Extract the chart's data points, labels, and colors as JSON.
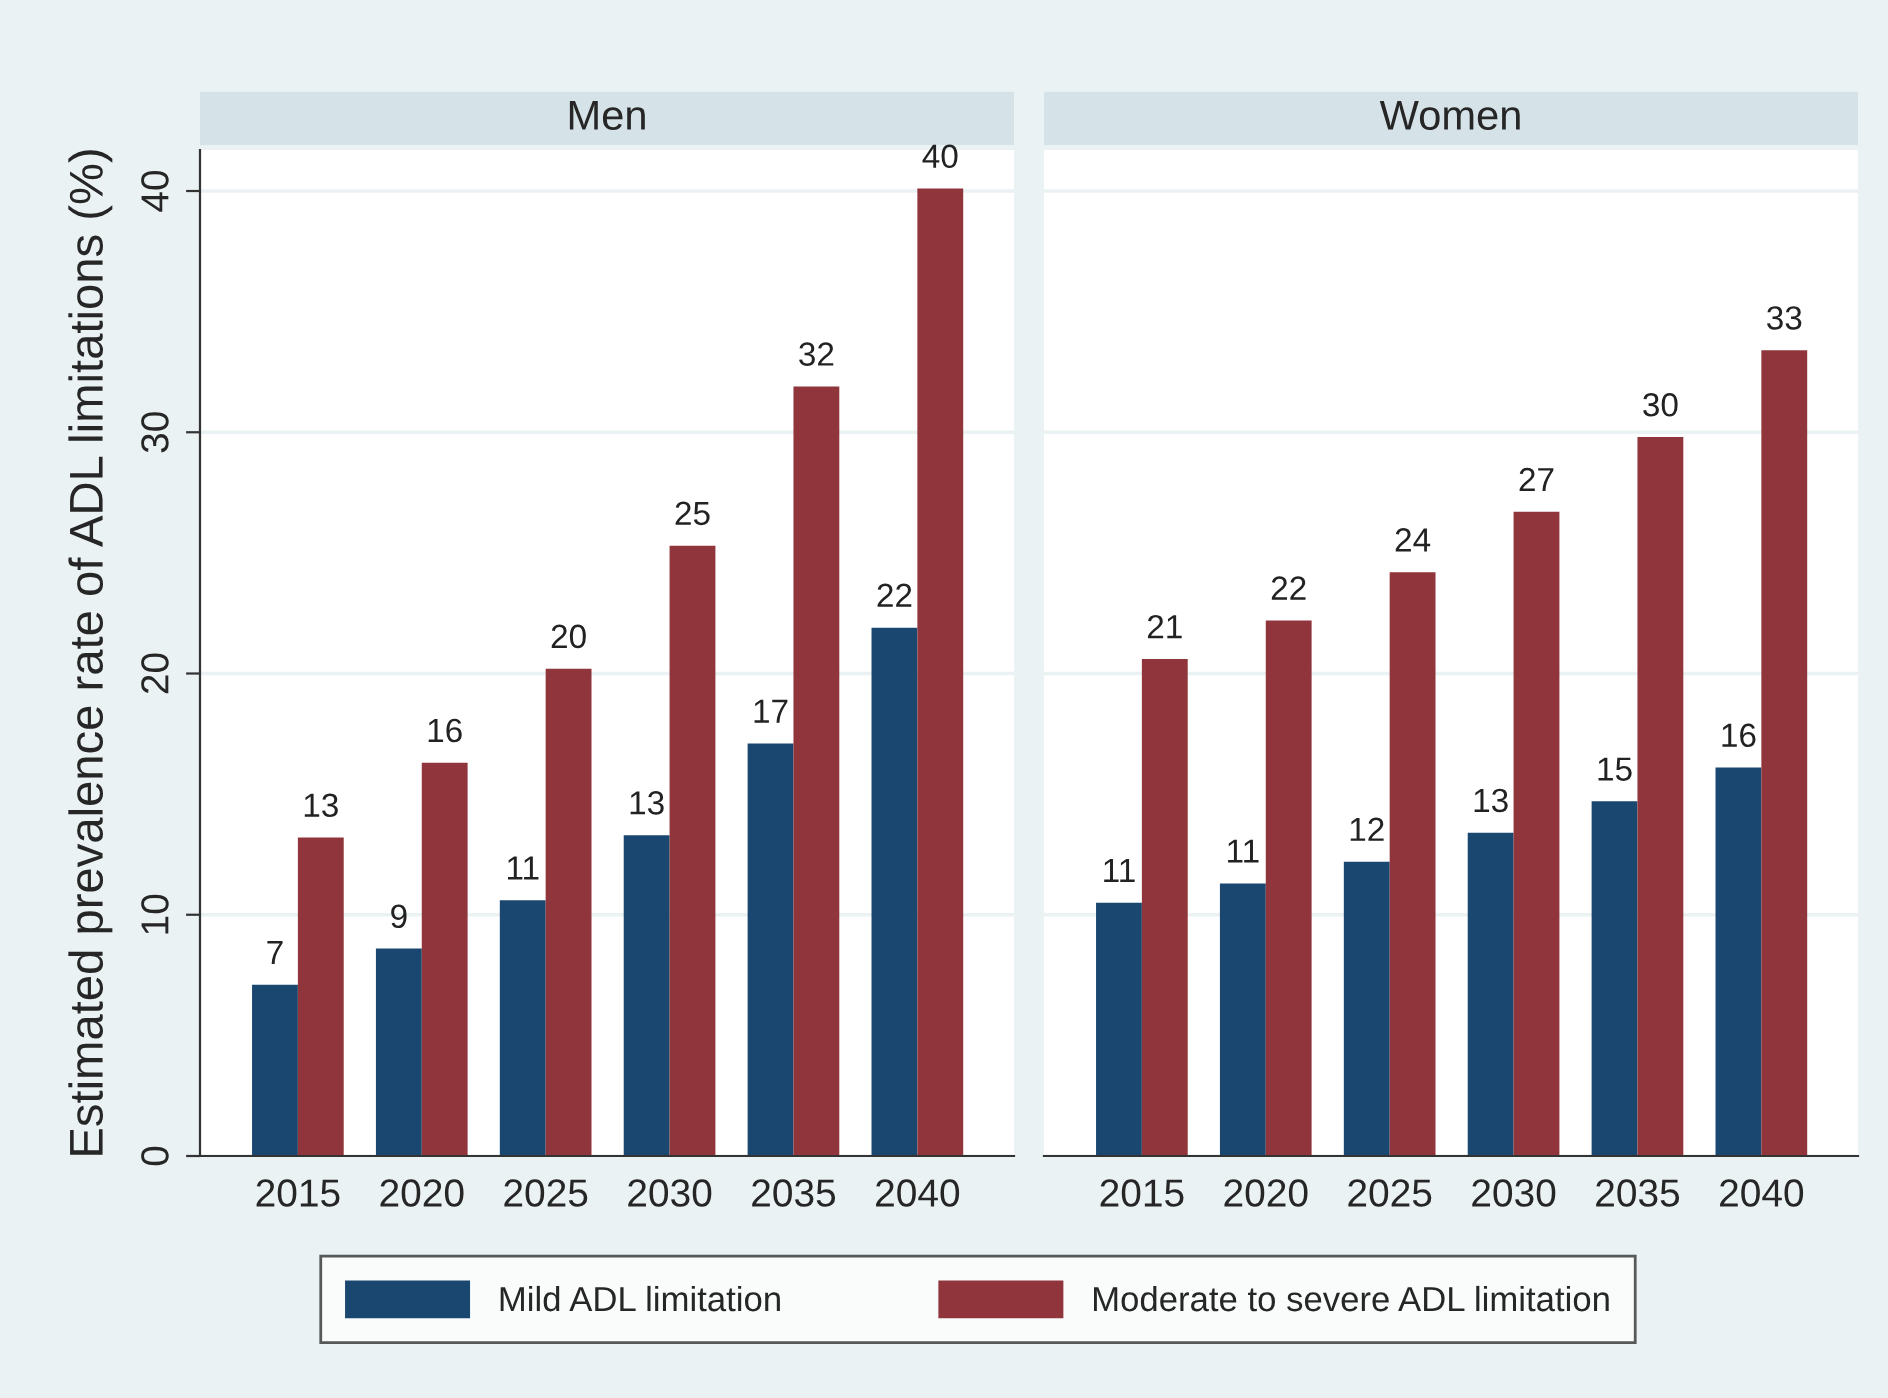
{
  "chart_data": [
    {
      "type": "bar",
      "title": "Men",
      "ylabel": "Estimated prevalence rate of ADL limitations (%)",
      "categories": [
        "2015",
        "2020",
        "2025",
        "2030",
        "2035",
        "2040"
      ],
      "series": [
        {
          "name": "Mild ADL limitation",
          "color": "#1a476f",
          "values": [
            7.1,
            8.6,
            10.6,
            13.3,
            17.1,
            21.9
          ],
          "value_labels": [
            "7",
            "9",
            "11",
            "13",
            "17",
            "22"
          ]
        },
        {
          "name": "Moderate to severe ADL limitation",
          "color": "#90353b",
          "values": [
            13.2,
            16.3,
            20.2,
            25.3,
            31.9,
            40.1
          ],
          "value_labels": [
            "13",
            "16",
            "20",
            "25",
            "32",
            "40"
          ]
        }
      ],
      "ylim": [
        0,
        41.7
      ],
      "yticks": [
        0,
        10,
        20,
        30,
        40
      ],
      "grid": "y",
      "legend": "bottom"
    },
    {
      "type": "bar",
      "title": "Women",
      "categories": [
        "2015",
        "2020",
        "2025",
        "2030",
        "2035",
        "2040"
      ],
      "series": [
        {
          "name": "Mild ADL limitation",
          "color": "#1a476f",
          "values": [
            10.5,
            11.3,
            12.2,
            13.4,
            14.7,
            16.1
          ],
          "value_labels": [
            "11",
            "11",
            "12",
            "13",
            "15",
            "16"
          ]
        },
        {
          "name": "Moderate to severe ADL limitation",
          "color": "#90353b",
          "values": [
            20.6,
            22.2,
            24.2,
            26.7,
            29.8,
            33.4
          ],
          "value_labels": [
            "21",
            "22",
            "24",
            "27",
            "30",
            "33"
          ]
        }
      ],
      "ylim": [
        0,
        41.7
      ],
      "yticks": [
        0,
        10,
        20,
        30,
        40
      ],
      "grid": "y",
      "tick_labels": "x"
    }
  ]
}
